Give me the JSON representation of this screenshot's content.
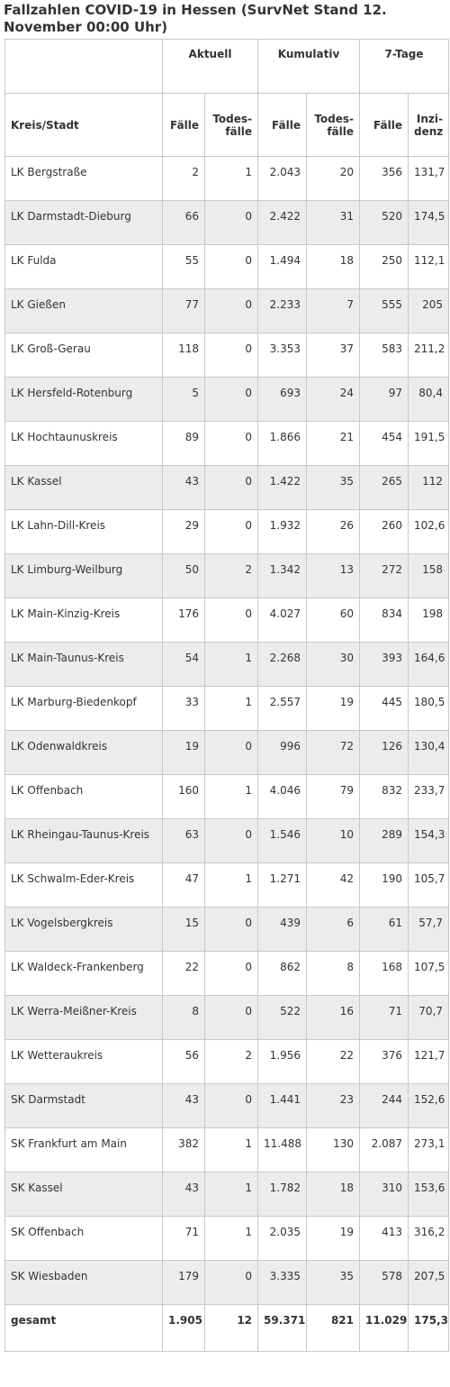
{
  "title": "Fallzahlen COVID-19 in Hessen (SurvNet Stand 12. November 00:00 Uhr)",
  "groups": [
    "Aktuell",
    "Kumulativ",
    "7-Tage"
  ],
  "columns": [
    "Kreis/Stadt",
    "Fälle",
    "Todes-fälle",
    "Fälle",
    "Todes-fälle",
    "Fälle",
    "Inzi-denz"
  ],
  "rows": [
    [
      "LK Bergstraße",
      "2",
      "1",
      "2.043",
      "20",
      "356",
      "131,7"
    ],
    [
      "LK Darmstadt-Dieburg",
      "66",
      "0",
      "2.422",
      "31",
      "520",
      "174,5"
    ],
    [
      "LK Fulda",
      "55",
      "0",
      "1.494",
      "18",
      "250",
      "112,1"
    ],
    [
      "LK Gießen",
      "77",
      "0",
      "2.233",
      "7",
      "555",
      "205"
    ],
    [
      "LK Groß-Gerau",
      "118",
      "0",
      "3.353",
      "37",
      "583",
      "211,2"
    ],
    [
      "LK Hersfeld-Rotenburg",
      "5",
      "0",
      "693",
      "24",
      "97",
      "80,4"
    ],
    [
      "LK Hochtaunuskreis",
      "89",
      "0",
      "1.866",
      "21",
      "454",
      "191,5"
    ],
    [
      "LK Kassel",
      "43",
      "0",
      "1.422",
      "35",
      "265",
      "112"
    ],
    [
      "LK Lahn-Dill-Kreis",
      "29",
      "0",
      "1.932",
      "26",
      "260",
      "102,6"
    ],
    [
      "LK Limburg-Weilburg",
      "50",
      "2",
      "1.342",
      "13",
      "272",
      "158"
    ],
    [
      "LK Main-Kinzig-Kreis",
      "176",
      "0",
      "4.027",
      "60",
      "834",
      "198"
    ],
    [
      "LK Main-Taunus-Kreis",
      "54",
      "1",
      "2.268",
      "30",
      "393",
      "164,6"
    ],
    [
      "LK Marburg-Biedenkopf",
      "33",
      "1",
      "2.557",
      "19",
      "445",
      "180,5"
    ],
    [
      "LK Odenwaldkreis",
      "19",
      "0",
      "996",
      "72",
      "126",
      "130,4"
    ],
    [
      "LK Offenbach",
      "160",
      "1",
      "4.046",
      "79",
      "832",
      "233,7"
    ],
    [
      "LK Rheingau-Taunus-Kreis",
      "63",
      "0",
      "1.546",
      "10",
      "289",
      "154,3"
    ],
    [
      "LK Schwalm-Eder-Kreis",
      "47",
      "1",
      "1.271",
      "42",
      "190",
      "105,7"
    ],
    [
      "LK Vogelsbergkreis",
      "15",
      "0",
      "439",
      "6",
      "61",
      "57,7"
    ],
    [
      "LK Waldeck-Frankenberg",
      "22",
      "0",
      "862",
      "8",
      "168",
      "107,5"
    ],
    [
      "LK Werra-Meißner-Kreis",
      "8",
      "0",
      "522",
      "16",
      "71",
      "70,7"
    ],
    [
      "LK Wetteraukreis",
      "56",
      "2",
      "1.956",
      "22",
      "376",
      "121,7"
    ],
    [
      "SK Darmstadt",
      "43",
      "0",
      "1.441",
      "23",
      "244",
      "152,6"
    ],
    [
      "SK Frankfurt am Main",
      "382",
      "1",
      "11.488",
      "130",
      "2.087",
      "273,1"
    ],
    [
      "SK Kassel",
      "43",
      "1",
      "1.782",
      "18",
      "310",
      "153,6"
    ],
    [
      "SK Offenbach",
      "71",
      "1",
      "2.035",
      "19",
      "413",
      "316,2"
    ],
    [
      "SK Wiesbaden",
      "179",
      "0",
      "3.335",
      "35",
      "578",
      "207,5"
    ]
  ],
  "total": [
    "gesamt",
    "1.905",
    "12",
    "59.371",
    "821",
    "11.029",
    "175,3"
  ]
}
